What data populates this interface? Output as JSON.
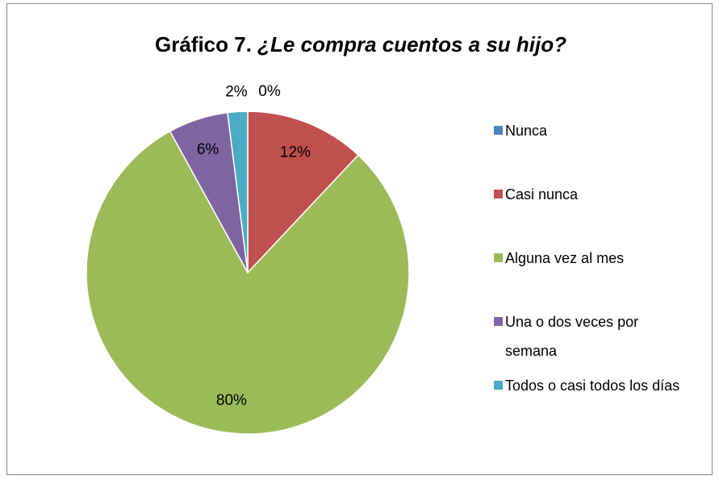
{
  "chart_data": {
    "type": "pie",
    "title": [
      "Gráfico 7.",
      "¿Le compra cuentos a su hijo?"
    ],
    "categories": [
      "Nunca",
      "Casi nunca",
      "Alguna vez al mes",
      "Una o dos veces por semana",
      "Todos o casi todos los días"
    ],
    "values": [
      0,
      12,
      80,
      6,
      2
    ],
    "value_labels": [
      "0%",
      "12%",
      "80%",
      "6%",
      "2%"
    ],
    "colors": [
      "#4f81bd",
      "#c0504d",
      "#9bbb59",
      "#8064a2",
      "#4bacc6"
    ],
    "legend": "right"
  }
}
